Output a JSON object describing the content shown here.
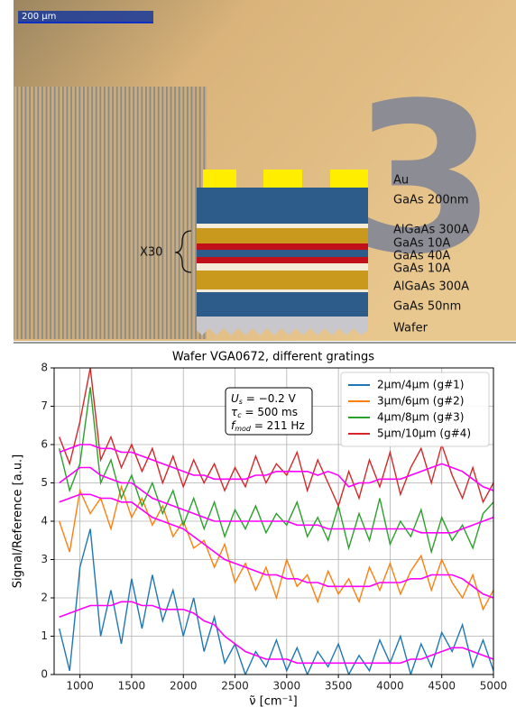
{
  "figure": {
    "scale_bar": "200 µm",
    "digit": "3",
    "repeat": "X30",
    "layers": [
      "Au",
      "GaAs 200nm",
      "AlGaAs 300A",
      "GaAs 10A",
      "GaAs 40A",
      "GaAs 10A",
      "AlGaAs 300A",
      "GaAs 50nm",
      "Wafer"
    ]
  },
  "chart_data": {
    "type": "line",
    "title": "Wafer VGA0672, different gratings",
    "x_label": "ν̃ [cm⁻¹]",
    "y_label": "Signal/Reference [a.u.]",
    "xlim": [
      750,
      5000
    ],
    "xticks": [
      1000,
      1500,
      2000,
      2500,
      3000,
      3500,
      4000,
      4500,
      5000
    ],
    "ylim": [
      0,
      8
    ],
    "yticks": [
      0,
      1,
      2,
      3,
      4,
      5,
      6,
      7,
      8
    ],
    "grid": true,
    "legend": "upper right",
    "annotations": [
      {
        "symbol": "U",
        "sub": "s",
        "rest": " = −0.2 V"
      },
      {
        "symbol": "τ",
        "sub": "c",
        "rest": " = 500 ms"
      },
      {
        "symbol": "f",
        "sub": "mod",
        "rest": " = 211 Hz"
      }
    ],
    "x": [
      800,
      900,
      1000,
      1100,
      1200,
      1300,
      1400,
      1500,
      1600,
      1700,
      1800,
      1900,
      2000,
      2100,
      2200,
      2300,
      2400,
      2500,
      2600,
      2700,
      2800,
      2900,
      3000,
      3100,
      3200,
      3300,
      3400,
      3500,
      3600,
      3700,
      3800,
      3900,
      4000,
      4100,
      4200,
      4300,
      4400,
      4500,
      4600,
      4700,
      4800,
      4900,
      5000
    ],
    "series": [
      {
        "name": "2µm/4µm (g#1)",
        "color": "#1f77b4",
        "values": [
          1.2,
          0.1,
          2.8,
          3.8,
          1.0,
          2.2,
          0.8,
          2.5,
          1.2,
          2.6,
          1.4,
          2.2,
          1.0,
          2.0,
          0.6,
          1.5,
          0.3,
          0.8,
          0.0,
          0.6,
          0.2,
          0.9,
          0.1,
          0.7,
          0.0,
          0.6,
          0.2,
          0.8,
          0.0,
          0.5,
          0.1,
          0.9,
          0.3,
          1.0,
          0.0,
          0.8,
          0.2,
          1.1,
          0.6,
          1.3,
          0.2,
          0.9,
          0.1
        ]
      },
      {
        "name": "3µm/6µm (g#2)",
        "color": "#ff7f0e",
        "values": [
          4.0,
          3.2,
          4.8,
          4.2,
          4.6,
          3.8,
          4.9,
          4.1,
          4.6,
          3.9,
          4.4,
          3.6,
          4.0,
          3.3,
          3.5,
          2.8,
          3.4,
          2.4,
          2.9,
          2.2,
          2.8,
          2.0,
          3.0,
          2.3,
          2.6,
          1.9,
          2.7,
          2.1,
          2.5,
          1.9,
          2.8,
          2.2,
          2.9,
          2.1,
          2.7,
          3.1,
          2.2,
          3.0,
          2.4,
          2.0,
          2.6,
          1.7,
          2.2
        ]
      },
      {
        "name": "4µm/8µm (g#3)",
        "color": "#2ca02c",
        "values": [
          5.9,
          4.8,
          5.5,
          7.5,
          5.0,
          5.6,
          4.6,
          5.2,
          4.4,
          5.0,
          4.2,
          4.8,
          3.9,
          4.6,
          3.8,
          4.5,
          3.6,
          4.3,
          3.8,
          4.4,
          3.7,
          4.2,
          3.9,
          4.5,
          3.6,
          4.1,
          3.5,
          4.4,
          3.3,
          4.2,
          3.5,
          4.6,
          3.4,
          4.0,
          3.6,
          4.3,
          3.2,
          4.1,
          3.5,
          3.9,
          3.3,
          4.2,
          4.5
        ]
      },
      {
        "name": "5µm/10µm (g#4)",
        "color": "#d62728",
        "values": [
          6.2,
          5.5,
          6.6,
          8.0,
          5.6,
          6.2,
          5.4,
          6.0,
          5.3,
          5.9,
          5.0,
          5.7,
          4.9,
          5.6,
          5.0,
          5.5,
          4.8,
          5.4,
          4.9,
          5.7,
          5.0,
          5.5,
          5.2,
          5.8,
          4.8,
          5.6,
          5.0,
          4.4,
          5.3,
          4.6,
          5.6,
          4.9,
          5.8,
          4.7,
          5.4,
          5.9,
          5.0,
          6.0,
          5.2,
          4.6,
          5.4,
          4.5,
          5.0
        ]
      },
      {
        "color": "#ff00ff",
        "values": [
          1.5,
          1.6,
          1.7,
          1.8,
          1.8,
          1.8,
          1.9,
          1.9,
          1.8,
          1.8,
          1.7,
          1.7,
          1.7,
          1.6,
          1.4,
          1.3,
          1.0,
          0.8,
          0.6,
          0.5,
          0.4,
          0.4,
          0.4,
          0.3,
          0.3,
          0.3,
          0.3,
          0.3,
          0.3,
          0.3,
          0.3,
          0.3,
          0.3,
          0.3,
          0.4,
          0.4,
          0.5,
          0.6,
          0.7,
          0.7,
          0.6,
          0.5,
          0.4
        ]
      },
      {
        "color": "#ff00ff",
        "values": [
          4.5,
          4.6,
          4.7,
          4.7,
          4.6,
          4.6,
          4.5,
          4.5,
          4.3,
          4.1,
          4.0,
          3.9,
          3.8,
          3.6,
          3.4,
          3.2,
          3.0,
          2.9,
          2.8,
          2.7,
          2.6,
          2.6,
          2.5,
          2.5,
          2.4,
          2.4,
          2.3,
          2.3,
          2.3,
          2.3,
          2.3,
          2.4,
          2.4,
          2.4,
          2.5,
          2.5,
          2.6,
          2.6,
          2.6,
          2.5,
          2.3,
          2.1,
          2.0
        ]
      },
      {
        "color": "#ff00ff",
        "values": [
          5.0,
          5.2,
          5.4,
          5.4,
          5.2,
          5.1,
          5.0,
          5.0,
          4.8,
          4.6,
          4.5,
          4.4,
          4.3,
          4.2,
          4.1,
          4.0,
          4.0,
          4.0,
          4.0,
          4.0,
          4.0,
          4.0,
          4.0,
          3.9,
          3.9,
          3.9,
          3.8,
          3.8,
          3.8,
          3.8,
          3.8,
          3.8,
          3.8,
          3.8,
          3.8,
          3.7,
          3.7,
          3.7,
          3.7,
          3.8,
          3.9,
          4.0,
          4.1
        ]
      },
      {
        "color": "#ff00ff",
        "values": [
          5.8,
          5.9,
          6.0,
          6.0,
          5.9,
          5.9,
          5.8,
          5.8,
          5.7,
          5.6,
          5.5,
          5.4,
          5.3,
          5.2,
          5.2,
          5.1,
          5.1,
          5.1,
          5.1,
          5.2,
          5.2,
          5.3,
          5.3,
          5.3,
          5.3,
          5.2,
          5.3,
          5.2,
          4.9,
          5.0,
          5.0,
          5.1,
          5.1,
          5.1,
          5.2,
          5.3,
          5.4,
          5.5,
          5.4,
          5.3,
          5.1,
          4.9,
          4.8
        ]
      }
    ]
  }
}
